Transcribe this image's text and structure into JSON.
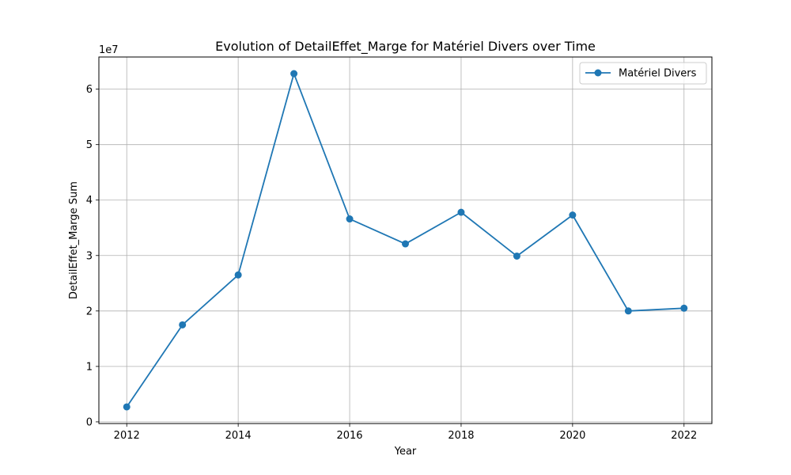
{
  "chart_data": {
    "type": "line",
    "title": "Evolution of DetailEffet_Marge for Matériel Divers over Time",
    "xlabel": "Year",
    "ylabel": "DetailEffet_Marge Sum",
    "y_offset_label": "1e7",
    "x": [
      2012,
      2013,
      2014,
      2015,
      2016,
      2017,
      2018,
      2019,
      2020,
      2021,
      2022
    ],
    "series": [
      {
        "name": "Matériel Divers",
        "color": "#1f77b4",
        "marker": "circle",
        "values": [
          2700000,
          17500000,
          26500000,
          62800000,
          36600000,
          32100000,
          37800000,
          29900000,
          37300000,
          20000000,
          20500000
        ]
      }
    ],
    "xlim": [
      2011.5,
      2022.5
    ],
    "ylim": [
      -300000,
      65800000
    ],
    "x_ticks": [
      {
        "value": 2012,
        "label": "2012"
      },
      {
        "value": 2014,
        "label": "2014"
      },
      {
        "value": 2016,
        "label": "2016"
      },
      {
        "value": 2018,
        "label": "2018"
      },
      {
        "value": 2020,
        "label": "2020"
      },
      {
        "value": 2022,
        "label": "2022"
      }
    ],
    "y_ticks": [
      {
        "value": 0,
        "label": "0"
      },
      {
        "value": 10000000,
        "label": "1"
      },
      {
        "value": 20000000,
        "label": "2"
      },
      {
        "value": 30000000,
        "label": "3"
      },
      {
        "value": 40000000,
        "label": "4"
      },
      {
        "value": 50000000,
        "label": "5"
      },
      {
        "value": 60000000,
        "label": "6"
      }
    ],
    "grid": true,
    "legend_position": "top-right"
  }
}
